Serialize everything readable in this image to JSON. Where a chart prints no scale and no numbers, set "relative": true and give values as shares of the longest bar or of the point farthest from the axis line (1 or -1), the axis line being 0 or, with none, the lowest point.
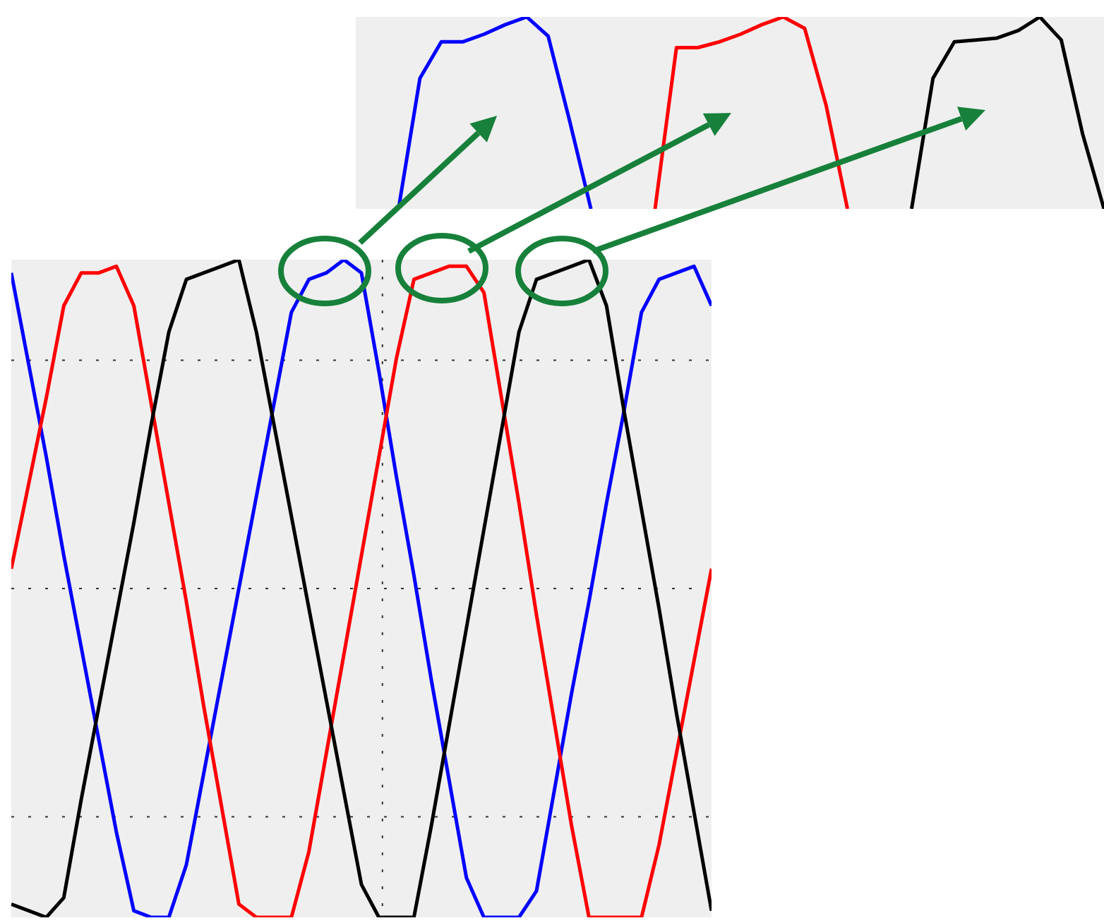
{
  "chart_data": [
    {
      "type": "line",
      "relative": true,
      "grid": true,
      "categories": [
        null,
        null,
        null,
        null,
        null,
        null,
        null,
        null,
        null,
        null,
        null,
        null,
        null,
        null,
        null,
        null,
        null,
        null,
        null,
        null,
        null,
        null,
        null,
        null,
        null,
        null,
        null,
        null,
        null,
        null,
        null,
        null,
        null,
        null,
        null,
        null,
        null,
        null,
        null,
        null,
        null
      ],
      "series": [
        {
          "color": "#0000ff",
          "values": [
            0.98,
            0.84,
            0.7,
            0.55,
            0.41,
            0.27,
            0.13,
            0.01,
            0.0,
            0.0,
            0.08,
            0.22,
            0.36,
            0.5,
            0.64,
            0.78,
            0.92,
            0.97,
            0.98,
            1.0,
            0.98,
            0.83,
            0.67,
            0.52,
            0.36,
            0.21,
            0.06,
            0.0,
            0.0,
            0.0,
            0.04,
            0.19,
            0.34,
            0.48,
            0.63,
            0.77,
            0.92,
            0.97,
            0.98,
            0.99,
            0.93
          ]
        },
        {
          "color": "#ff0000",
          "values": [
            0.53,
            0.66,
            0.79,
            0.93,
            0.98,
            0.98,
            0.99,
            0.93,
            0.78,
            0.63,
            0.48,
            0.32,
            0.17,
            0.02,
            0.0,
            0.0,
            0.0,
            0.1,
            0.25,
            0.4,
            0.55,
            0.7,
            0.85,
            0.97,
            0.98,
            0.99,
            0.99,
            0.95,
            0.79,
            0.63,
            0.46,
            0.3,
            0.14,
            0.0,
            0.0,
            0.0,
            0.0,
            0.11,
            0.25,
            0.39,
            0.53
          ]
        },
        {
          "color": "#000000",
          "values": [
            0.02,
            0.01,
            0.0,
            0.03,
            0.18,
            0.32,
            0.46,
            0.6,
            0.75,
            0.89,
            0.97,
            0.98,
            0.99,
            1.0,
            0.89,
            0.75,
            0.61,
            0.47,
            0.33,
            0.19,
            0.05,
            0.0,
            0.0,
            0.0,
            0.14,
            0.29,
            0.44,
            0.59,
            0.74,
            0.89,
            0.97,
            0.98,
            0.99,
            1.0,
            0.93,
            0.77,
            0.62,
            0.47,
            0.31,
            0.16,
            0.01
          ]
        }
      ]
    },
    {
      "type": "line",
      "relative": true,
      "categories": [
        null,
        null,
        null,
        null,
        null,
        null,
        null,
        null,
        null,
        null,
        null,
        null,
        null,
        null,
        null,
        null,
        null,
        null,
        null,
        null,
        null,
        null,
        null,
        null,
        null,
        null,
        null,
        null,
        null,
        null,
        null,
        null,
        null,
        null,
        null,
        null
      ],
      "series": [
        {
          "color": "#0000ff",
          "values": [
            null,
            null,
            0.0,
            0.68,
            0.87,
            0.87,
            0.91,
            0.96,
            1.0,
            0.9,
            0.46,
            0.0,
            null,
            null,
            null,
            null,
            null,
            null,
            null,
            null,
            null,
            null,
            null,
            null,
            null,
            null,
            null,
            null,
            null,
            null,
            null,
            null,
            null,
            null,
            null,
            null
          ]
        },
        {
          "color": "#ff0000",
          "values": [
            null,
            null,
            null,
            null,
            null,
            null,
            null,
            null,
            null,
            null,
            null,
            null,
            null,
            null,
            0.0,
            0.84,
            0.84,
            0.87,
            0.91,
            0.96,
            1.0,
            0.94,
            0.54,
            0.0,
            null,
            null,
            null,
            null,
            null,
            null,
            null,
            null,
            null,
            null,
            null,
            null
          ]
        },
        {
          "color": "#000000",
          "values": [
            null,
            null,
            null,
            null,
            null,
            null,
            null,
            null,
            null,
            null,
            null,
            null,
            null,
            null,
            null,
            null,
            null,
            null,
            null,
            null,
            null,
            null,
            null,
            null,
            null,
            null,
            0.0,
            0.68,
            0.87,
            0.88,
            0.89,
            0.93,
            1.0,
            0.88,
            0.39,
            0.0
          ]
        }
      ]
    }
  ]
}
